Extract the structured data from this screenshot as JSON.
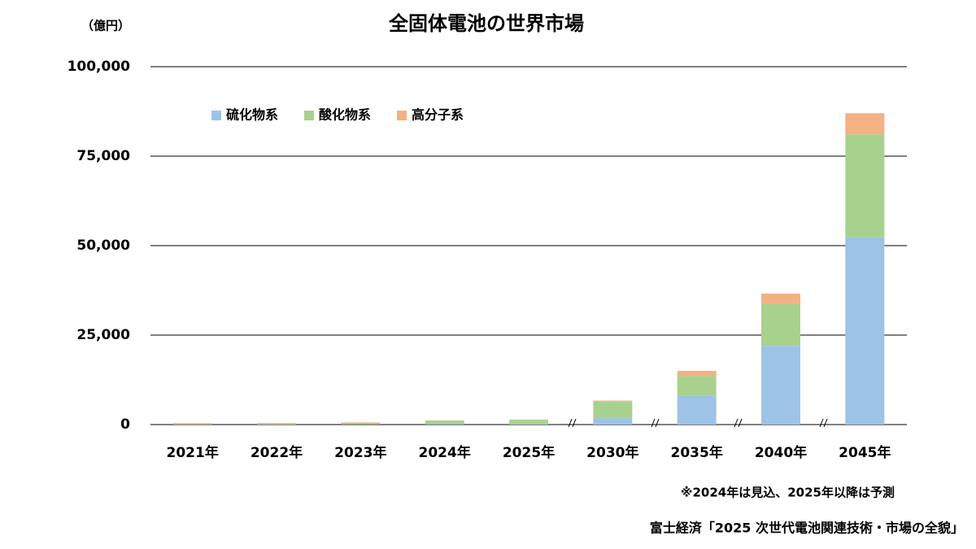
{
  "chart_data": {
    "type": "stacked_bar",
    "title": "全固体電池の世界市場",
    "y_unit": "（億円）",
    "categories": [
      "2021年",
      "2022年",
      "2023年",
      "2024年",
      "2025年",
      "2030年",
      "2035年",
      "2040年",
      "2045年"
    ],
    "series": [
      {
        "name": "硫化物系",
        "color": "#9dc3e6",
        "values": [
          0,
          0,
          50,
          100,
          150,
          1800,
          8000,
          22000,
          52300
        ]
      },
      {
        "name": "酸化物系",
        "color": "#a9d18e",
        "values": [
          100,
          150,
          400,
          1000,
          1200,
          4600,
          5600,
          11900,
          28800
        ]
      },
      {
        "name": "高分子系",
        "color": "#f4b183",
        "values": [
          300,
          300,
          150,
          50,
          50,
          300,
          1400,
          2700,
          5900
        ]
      }
    ],
    "ylim": [
      0,
      100000
    ],
    "yticks": [
      {
        "value": 0,
        "label": "0"
      },
      {
        "value": 25000,
        "label": "25,000"
      },
      {
        "value": 50000,
        "label": "50,000"
      },
      {
        "value": 75000,
        "label": "75,000"
      },
      {
        "value": 100000,
        "label": "100,000"
      }
    ],
    "grid": true,
    "legend": "top-left",
    "note": "※2024年は見込、2025年以降は予測",
    "source": "富士経済「2025 次世代電池関連技術・市場の全貌」"
  }
}
